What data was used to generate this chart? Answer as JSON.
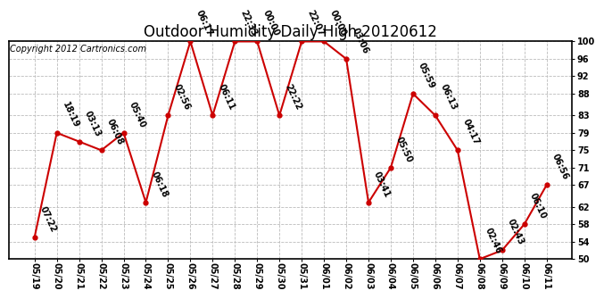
{
  "title": "Outdoor Humidity Daily High 20120612",
  "copyright": "Copyright 2012 Cartronics.com",
  "xlabels": [
    "05/19",
    "05/20",
    "05/21",
    "05/22",
    "05/23",
    "05/24",
    "05/25",
    "05/26",
    "05/27",
    "05/28",
    "05/29",
    "05/30",
    "05/31",
    "06/01",
    "06/02",
    "06/03",
    "06/04",
    "06/05",
    "06/06",
    "06/07",
    "06/08",
    "06/09",
    "06/10",
    "06/11"
  ],
  "yvalues": [
    55,
    79,
    77,
    75,
    79,
    63,
    83,
    100,
    83,
    100,
    100,
    83,
    100,
    100,
    96,
    63,
    71,
    88,
    83,
    75,
    50,
    52,
    58,
    67
  ],
  "point_labels": [
    "07:22",
    "18:19",
    "03:13",
    "06:08",
    "05:40",
    "06:18",
    "02:56",
    "06:17",
    "06:11",
    "22:33",
    "00:00",
    "22:22",
    "22:07",
    "00:00",
    "03:06",
    "03:41",
    "05:50",
    "05:59",
    "06:13",
    "04:17",
    "02:46",
    "02:43",
    "06:10",
    "06:56"
  ],
  "ylim_min": 50,
  "ylim_max": 100,
  "yticks": [
    50,
    54,
    58,
    62,
    67,
    71,
    75,
    79,
    83,
    88,
    92,
    96,
    100
  ],
  "line_color": "#cc0000",
  "marker_color": "#cc0000",
  "background_color": "#ffffff",
  "grid_color": "#bbbbbb",
  "title_fontsize": 12,
  "annot_fontsize": 7,
  "tick_fontsize": 7,
  "copyright_fontsize": 7
}
